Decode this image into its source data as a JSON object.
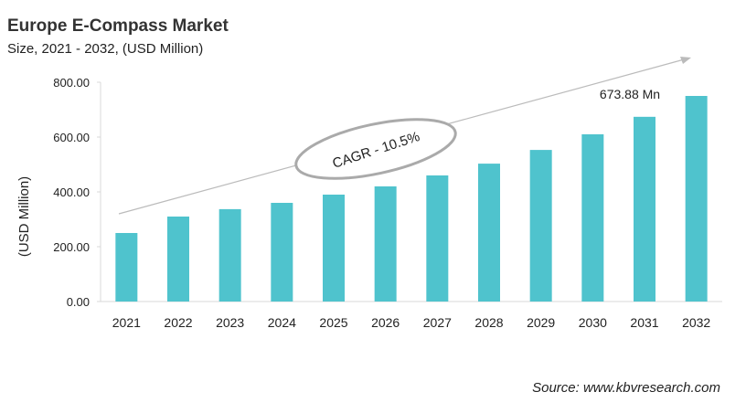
{
  "title": "Europe E-Compass Market",
  "subtitle": "Size, 2021 - 2032, (USD Million)",
  "source": "Source: www.kbvresearch.com",
  "chart_data": {
    "type": "bar",
    "categories": [
      "2021",
      "2022",
      "2023",
      "2024",
      "2025",
      "2026",
      "2027",
      "2028",
      "2029",
      "2030",
      "2031",
      "2032"
    ],
    "values": [
      250,
      310,
      337,
      360,
      390,
      420,
      460,
      503,
      553,
      610,
      673.88,
      750
    ],
    "ylabel": "(USD Million)",
    "ylim": [
      0,
      800
    ],
    "yticks": [
      "0.00",
      "200.00",
      "400.00",
      "600.00",
      "800.00"
    ],
    "data_label": {
      "category": "2031",
      "text": "673.88 Mn"
    },
    "annotation": "CAGR - 10.5%",
    "bar_color": "#4fc3cd",
    "grid": false
  }
}
